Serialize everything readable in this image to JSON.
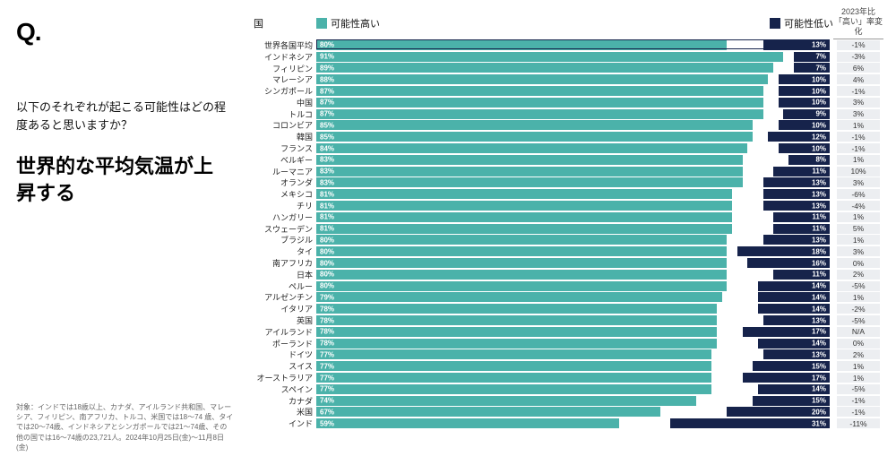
{
  "logo": "Q.",
  "question": "以下のそれぞれが起こる可能性はどの程度あると思いますか？",
  "headline": "世界的な平均気温が上昇する",
  "footnote": "対象：インドでは18歳以上、カナダ、アイルランド共和国、マレーシア、フィリピン、南アフリカ、トルコ、米国では18～74 歳、タイでは20～74歳、インドネシアとシンガポールでは21～74歳、その他の国では16～74歳の23,721人。2024年10月25日(金)～11月8日(金)",
  "header": {
    "country": "国",
    "high": "可能性高い",
    "low": "可能性低い",
    "change": "2023年比\n「高い」率変化"
  },
  "colors": {
    "high": "#4bb2aa",
    "low": "#16234b",
    "avg_high": "#4bb2aa",
    "change_bg": "#eceef1",
    "text": "#111111",
    "bg": "#ffffff"
  },
  "chart": {
    "scale": 100,
    "rows": [
      {
        "country": "世界各国平均",
        "high": 80,
        "low": 13,
        "change": "-1%",
        "avg": true
      },
      {
        "country": "インドネシア",
        "high": 91,
        "low": 7,
        "change": "-3%"
      },
      {
        "country": "フィリピン",
        "high": 89,
        "low": 7,
        "change": "6%"
      },
      {
        "country": "マレーシア",
        "high": 88,
        "low": 10,
        "change": "4%"
      },
      {
        "country": "シンガポール",
        "high": 87,
        "low": 10,
        "change": "-1%"
      },
      {
        "country": "中国",
        "high": 87,
        "low": 10,
        "change": "3%"
      },
      {
        "country": "トルコ",
        "high": 87,
        "low": 9,
        "change": "3%"
      },
      {
        "country": "コロンビア",
        "high": 85,
        "low": 10,
        "change": "1%"
      },
      {
        "country": "韓国",
        "high": 85,
        "low": 12,
        "change": "-1%"
      },
      {
        "country": "フランス",
        "high": 84,
        "low": 10,
        "change": "-1%"
      },
      {
        "country": "ベルギー",
        "high": 83,
        "low": 8,
        "change": "1%"
      },
      {
        "country": "ルーマニア",
        "high": 83,
        "low": 11,
        "change": "10%"
      },
      {
        "country": "オランダ",
        "high": 83,
        "low": 13,
        "change": "3%"
      },
      {
        "country": "メキシコ",
        "high": 81,
        "low": 13,
        "change": "-6%"
      },
      {
        "country": "チリ",
        "high": 81,
        "low": 13,
        "change": "-4%"
      },
      {
        "country": "ハンガリー",
        "high": 81,
        "low": 11,
        "change": "1%"
      },
      {
        "country": "スウェーデン",
        "high": 81,
        "low": 11,
        "change": "5%"
      },
      {
        "country": "ブラジル",
        "high": 80,
        "low": 13,
        "change": "1%"
      },
      {
        "country": "タイ",
        "high": 80,
        "low": 18,
        "change": "3%"
      },
      {
        "country": "南アフリカ",
        "high": 80,
        "low": 16,
        "change": "0%"
      },
      {
        "country": "日本",
        "high": 80,
        "low": 11,
        "change": "2%"
      },
      {
        "country": "ペルー",
        "high": 80,
        "low": 14,
        "change": "-5%"
      },
      {
        "country": "アルゼンチン",
        "high": 79,
        "low": 14,
        "change": "1%"
      },
      {
        "country": "イタリア",
        "high": 78,
        "low": 14,
        "change": "-2%"
      },
      {
        "country": "英国",
        "high": 78,
        "low": 13,
        "change": "-5%"
      },
      {
        "country": "アイルランド",
        "high": 78,
        "low": 17,
        "change": "N/A"
      },
      {
        "country": "ポーランド",
        "high": 78,
        "low": 14,
        "change": "0%"
      },
      {
        "country": "ドイツ",
        "high": 77,
        "low": 13,
        "change": "2%"
      },
      {
        "country": "スイス",
        "high": 77,
        "low": 15,
        "change": "1%"
      },
      {
        "country": "オーストラリア",
        "high": 77,
        "low": 17,
        "change": "1%"
      },
      {
        "country": "スペイン",
        "high": 77,
        "low": 14,
        "change": "-5%"
      },
      {
        "country": "カナダ",
        "high": 74,
        "low": 15,
        "change": "-1%"
      },
      {
        "country": "米国",
        "high": 67,
        "low": 20,
        "change": "-1%"
      },
      {
        "country": "インド",
        "high": 59,
        "low": 31,
        "change": "-11%"
      }
    ]
  }
}
